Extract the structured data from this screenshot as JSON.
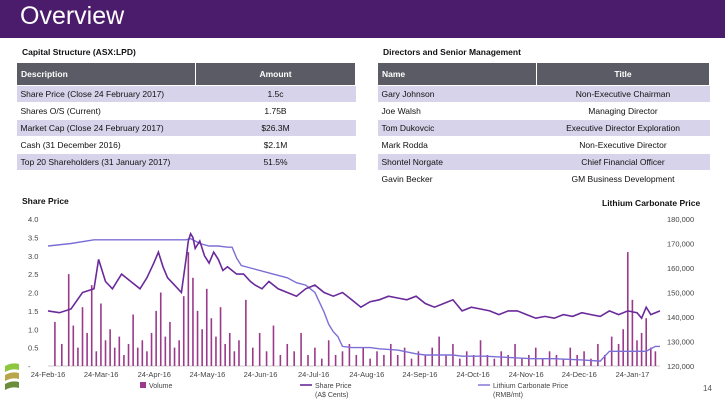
{
  "header": {
    "title": "Overview"
  },
  "capital": {
    "heading": "Capital Structure (ASX:LPD)",
    "columns": [
      "Description",
      "Amount"
    ],
    "rows": [
      [
        "Share Price (Close 24 February 2017)",
        "1.5c"
      ],
      [
        "Shares O/S (Current)",
        "1.75B"
      ],
      [
        "Market Cap (Close 24 February 2017)",
        "$26.3M"
      ],
      [
        "Cash (31 December 2016)",
        "$2.1M"
      ],
      [
        "Top 20 Shareholders (31 January 2017)",
        "51.5%"
      ]
    ]
  },
  "directors": {
    "heading": "Directors and Senior Management",
    "columns": [
      "Name",
      "Title"
    ],
    "rows": [
      [
        "Gary Johnson",
        "Non-Executive Chairman"
      ],
      [
        "Joe Walsh",
        "Managing Director"
      ],
      [
        "Tom Dukovcic",
        "Executive Director Exploration"
      ],
      [
        "Mark Rodda",
        "Non-Executive Director"
      ],
      [
        "Shontel Norgate",
        "Chief Financial Officer"
      ],
      [
        "Gavin Becker",
        "GM Business Development"
      ]
    ]
  },
  "page_number": "14",
  "colors": {
    "banner": "#4b1c6b",
    "table_header": "#5b5b65",
    "row_alt": "#d7d3ea",
    "share_price": "#6a2a9a",
    "lithium": "#7b6fd6",
    "volume": "#9b3a8a"
  },
  "chart_data": {
    "type": "line",
    "title_left": "Share Price",
    "title_right": "Lithium Carbonate Price",
    "x_ticks": [
      "24-Feb-16",
      "24-Mar-16",
      "24-Apr-16",
      "24-May-16",
      "24-Jun-16",
      "24-Jul-16",
      "24-Aug-16",
      "24-Sep-16",
      "24-Oct-16",
      "24-Nov-16",
      "24-Dec-16",
      "24-Jan-17"
    ],
    "y_left_ticks": [
      "4.0",
      "3.5",
      "3.0",
      "2.5",
      "2.0",
      "1.5",
      "1.0",
      "0.5",
      "-"
    ],
    "y_left_range": [
      0,
      4
    ],
    "y_right_ticks": [
      "180,000",
      "170,000",
      "160,000",
      "150,000",
      "140,000",
      "130,000",
      "120,000"
    ],
    "y_right_range": [
      120000,
      180000
    ],
    "grid": false,
    "legend": [
      "Volume",
      "Share Price (A$ Cents)",
      "Lithium Carbonate Price (RMB/mt)"
    ],
    "legend_position": "bottom",
    "series": [
      {
        "name": "Share Price (A$ Cents)",
        "axis": "left",
        "points": [
          [
            0,
            1.5
          ],
          [
            5,
            1.45
          ],
          [
            10,
            1.55
          ],
          [
            15,
            2.0
          ],
          [
            20,
            2.1
          ],
          [
            22,
            2.9
          ],
          [
            25,
            2.3
          ],
          [
            28,
            2.1
          ],
          [
            32,
            2.5
          ],
          [
            36,
            2.3
          ],
          [
            40,
            2.1
          ],
          [
            43,
            2.4
          ],
          [
            46,
            2.8
          ],
          [
            48,
            3.1
          ],
          [
            50,
            2.7
          ],
          [
            52,
            2.4
          ],
          [
            55,
            2.2
          ],
          [
            58,
            2.0
          ],
          [
            60,
            2.9
          ],
          [
            61,
            3.4
          ],
          [
            62,
            3.6
          ],
          [
            63,
            3.5
          ],
          [
            64,
            3.2
          ],
          [
            66,
            3.4
          ],
          [
            68,
            3.0
          ],
          [
            70,
            2.8
          ],
          [
            72,
            3.1
          ],
          [
            74,
            2.9
          ],
          [
            76,
            2.6
          ],
          [
            78,
            2.7
          ],
          [
            80,
            2.6
          ],
          [
            82,
            2.5
          ],
          [
            85,
            2.5
          ],
          [
            88,
            2.3
          ],
          [
            90,
            2.2
          ],
          [
            93,
            2.1
          ],
          [
            96,
            2.3
          ],
          [
            100,
            2.1
          ],
          [
            104,
            2.0
          ],
          [
            108,
            1.9
          ],
          [
            112,
            2.1
          ],
          [
            116,
            2.2
          ],
          [
            120,
            2.0
          ],
          [
            124,
            1.9
          ],
          [
            128,
            2.0
          ],
          [
            132,
            1.8
          ],
          [
            136,
            1.6
          ],
          [
            140,
            1.75
          ],
          [
            144,
            1.8
          ],
          [
            148,
            1.9
          ],
          [
            152,
            1.85
          ],
          [
            156,
            1.8
          ],
          [
            160,
            1.9
          ],
          [
            164,
            1.7
          ],
          [
            168,
            1.6
          ],
          [
            172,
            1.7
          ],
          [
            176,
            1.8
          ],
          [
            180,
            1.5
          ],
          [
            184,
            1.6
          ],
          [
            188,
            1.55
          ],
          [
            192,
            1.5
          ],
          [
            196,
            1.4
          ],
          [
            200,
            1.5
          ],
          [
            204,
            1.5
          ],
          [
            208,
            1.4
          ],
          [
            212,
            1.3
          ],
          [
            216,
            1.35
          ],
          [
            220,
            1.3
          ],
          [
            224,
            1.4
          ],
          [
            228,
            1.35
          ],
          [
            232,
            1.45
          ],
          [
            236,
            1.4
          ],
          [
            240,
            1.35
          ],
          [
            244,
            1.5
          ],
          [
            248,
            1.4
          ],
          [
            252,
            1.5
          ],
          [
            256,
            1.45
          ],
          [
            258,
            1.3
          ],
          [
            260,
            1.6
          ],
          [
            262,
            1.4
          ],
          [
            264,
            1.45
          ],
          [
            266,
            1.5
          ]
        ]
      },
      {
        "name": "Lithium Carbonate Price (RMB/mt)",
        "axis": "right",
        "points": [
          [
            0,
            169000
          ],
          [
            10,
            170000
          ],
          [
            20,
            171500
          ],
          [
            40,
            171500
          ],
          [
            60,
            171500
          ],
          [
            62,
            172000
          ],
          [
            64,
            171000
          ],
          [
            66,
            170000
          ],
          [
            70,
            169000
          ],
          [
            74,
            169000
          ],
          [
            78,
            168500
          ],
          [
            80,
            168500
          ],
          [
            82,
            164000
          ],
          [
            84,
            161000
          ],
          [
            88,
            160000
          ],
          [
            96,
            158000
          ],
          [
            104,
            156000
          ],
          [
            108,
            154000
          ],
          [
            112,
            153000
          ],
          [
            116,
            150000
          ],
          [
            118,
            146000
          ],
          [
            120,
            142000
          ],
          [
            122,
            137000
          ],
          [
            124,
            134000
          ],
          [
            126,
            132000
          ],
          [
            128,
            128000
          ],
          [
            132,
            127500
          ],
          [
            140,
            127500
          ],
          [
            144,
            127000
          ],
          [
            152,
            126500
          ],
          [
            160,
            125000
          ],
          [
            164,
            124500
          ],
          [
            176,
            124500
          ],
          [
            180,
            124000
          ],
          [
            190,
            124000
          ],
          [
            200,
            123500
          ],
          [
            210,
            123000
          ],
          [
            220,
            123000
          ],
          [
            232,
            122500
          ],
          [
            240,
            122000
          ],
          [
            244,
            126000
          ],
          [
            248,
            126000
          ],
          [
            260,
            126000
          ],
          [
            262,
            127000
          ],
          [
            264,
            128000
          ],
          [
            266,
            128000
          ]
        ]
      },
      {
        "name": "Volume",
        "axis": "left",
        "bars": [
          [
            3,
            1.2
          ],
          [
            6,
            0.6
          ],
          [
            9,
            2.5
          ],
          [
            11,
            1.1
          ],
          [
            13,
            0.5
          ],
          [
            15,
            1.6
          ],
          [
            17,
            0.9
          ],
          [
            19,
            2.2
          ],
          [
            21,
            0.4
          ],
          [
            23,
            1.7
          ],
          [
            25,
            0.7
          ],
          [
            27,
            1.0
          ],
          [
            29,
            0.5
          ],
          [
            31,
            0.8
          ],
          [
            33,
            0.3
          ],
          [
            35,
            0.6
          ],
          [
            37,
            1.4
          ],
          [
            39,
            0.5
          ],
          [
            41,
            0.7
          ],
          [
            43,
            0.4
          ],
          [
            45,
            0.9
          ],
          [
            47,
            1.5
          ],
          [
            49,
            2.0
          ],
          [
            51,
            0.8
          ],
          [
            53,
            1.2
          ],
          [
            55,
            0.5
          ],
          [
            57,
            0.7
          ],
          [
            59,
            1.9
          ],
          [
            61,
            3.1
          ],
          [
            63,
            2.4
          ],
          [
            65,
            1.5
          ],
          [
            67,
            1.0
          ],
          [
            69,
            2.1
          ],
          [
            71,
            1.3
          ],
          [
            73,
            0.8
          ],
          [
            75,
            1.6
          ],
          [
            77,
            0.6
          ],
          [
            79,
            0.9
          ],
          [
            81,
            0.4
          ],
          [
            83,
            0.7
          ],
          [
            86,
            1.8
          ],
          [
            89,
            0.5
          ],
          [
            92,
            0.9
          ],
          [
            95,
            0.4
          ],
          [
            98,
            1.1
          ],
          [
            101,
            0.3
          ],
          [
            104,
            0.6
          ],
          [
            107,
            0.4
          ],
          [
            110,
            0.9
          ],
          [
            113,
            0.3
          ],
          [
            116,
            0.5
          ],
          [
            119,
            0.2
          ],
          [
            122,
            0.7
          ],
          [
            125,
            0.3
          ],
          [
            128,
            0.4
          ],
          [
            131,
            0.6
          ],
          [
            134,
            0.3
          ],
          [
            137,
            0.5
          ],
          [
            140,
            0.2
          ],
          [
            143,
            0.4
          ],
          [
            146,
            0.3
          ],
          [
            149,
            0.6
          ],
          [
            152,
            0.3
          ],
          [
            155,
            0.5
          ],
          [
            158,
            0.2
          ],
          [
            161,
            0.4
          ],
          [
            164,
            0.3
          ],
          [
            167,
            0.5
          ],
          [
            170,
            0.8
          ],
          [
            173,
            0.3
          ],
          [
            176,
            0.6
          ],
          [
            179,
            0.2
          ],
          [
            182,
            0.4
          ],
          [
            185,
            0.3
          ],
          [
            188,
            0.7
          ],
          [
            191,
            0.3
          ],
          [
            194,
            0.2
          ],
          [
            197,
            0.4
          ],
          [
            200,
            0.3
          ],
          [
            203,
            0.6
          ],
          [
            206,
            0.2
          ],
          [
            209,
            0.3
          ],
          [
            212,
            0.5
          ],
          [
            215,
            0.2
          ],
          [
            218,
            0.4
          ],
          [
            221,
            0.3
          ],
          [
            224,
            0.2
          ],
          [
            227,
            0.5
          ],
          [
            230,
            0.3
          ],
          [
            233,
            0.4
          ],
          [
            236,
            0.2
          ],
          [
            239,
            0.6
          ],
          [
            242,
            0.3
          ],
          [
            245,
            0.8
          ],
          [
            248,
            0.6
          ],
          [
            250,
            1.0
          ],
          [
            252,
            3.1
          ],
          [
            254,
            1.8
          ],
          [
            256,
            0.7
          ],
          [
            258,
            0.9
          ],
          [
            260,
            1.3
          ],
          [
            262,
            0.5
          ],
          [
            264,
            0.4
          ]
        ]
      }
    ]
  }
}
